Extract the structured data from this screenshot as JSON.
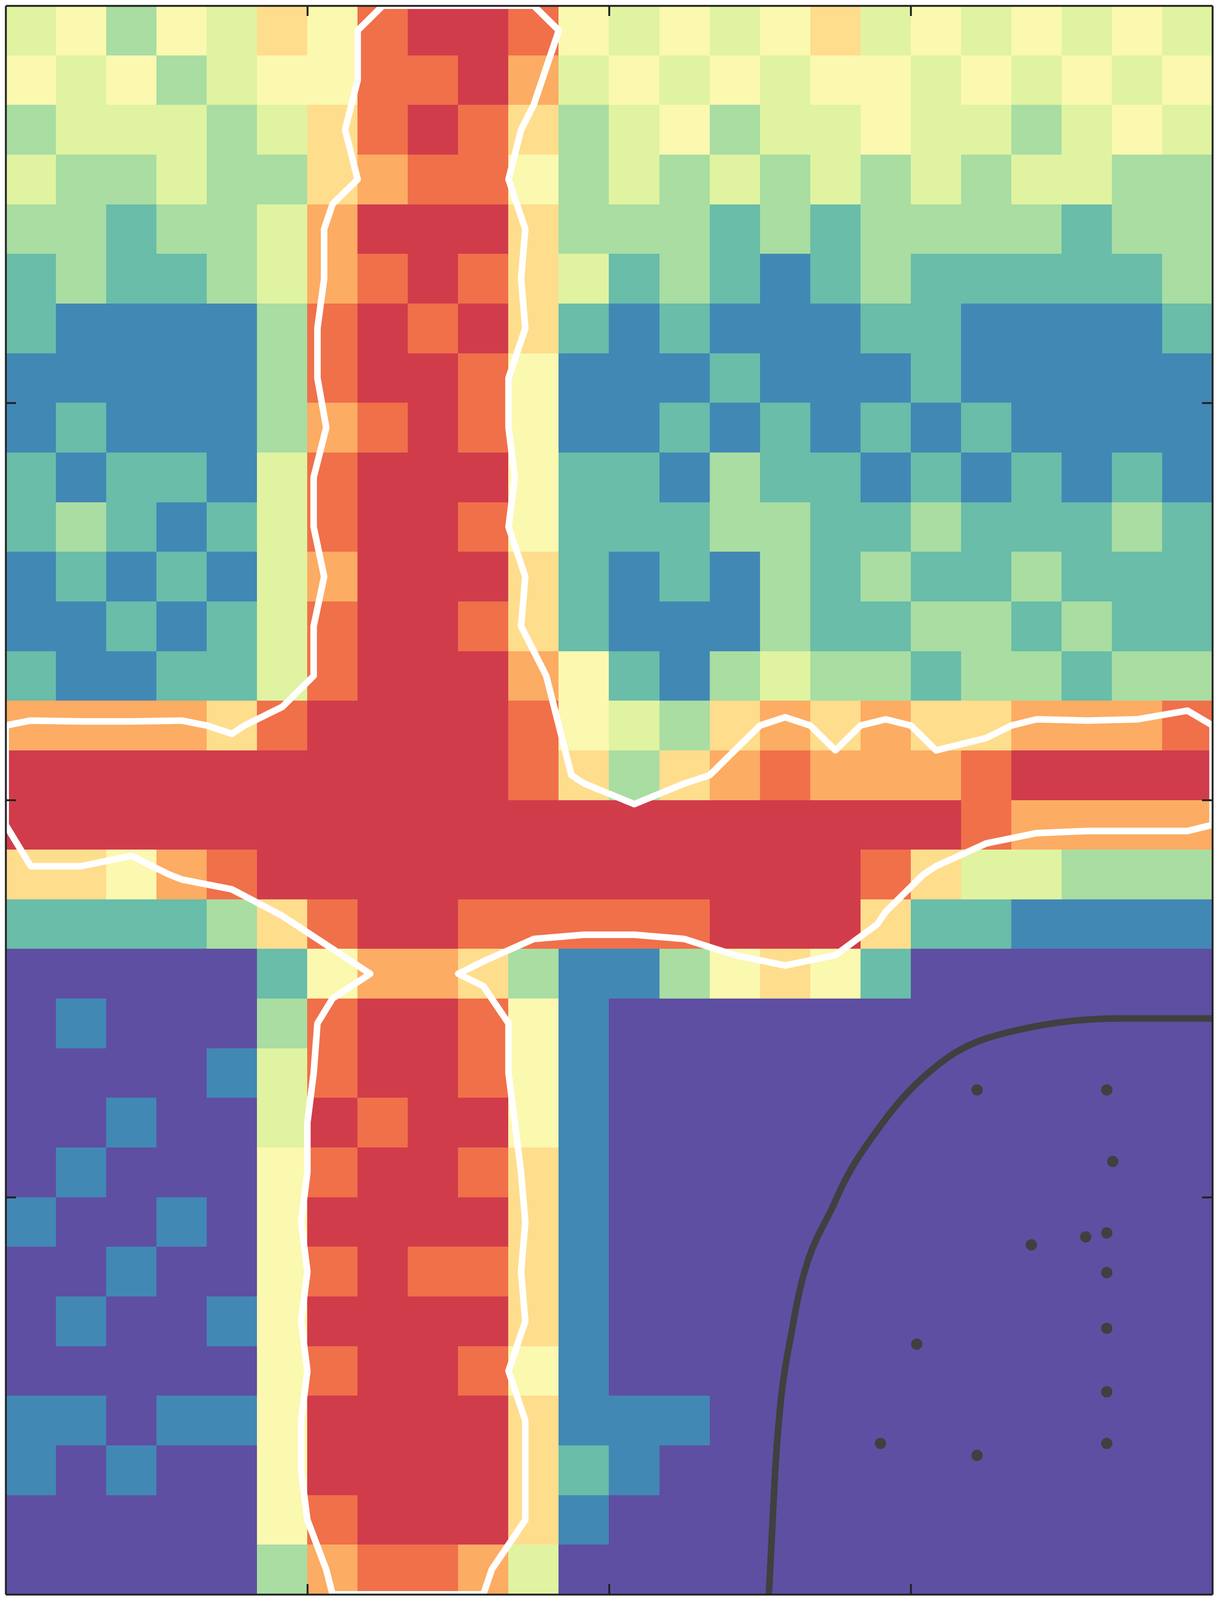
{
  "chart_data": {
    "type": "heatmap",
    "xlim": [
      0,
      4
    ],
    "ylim": [
      0,
      4
    ],
    "xticks": [
      1,
      2,
      3
    ],
    "yticks": [
      1,
      2,
      3
    ],
    "tick_labels": false,
    "zlim": [
      0,
      10
    ],
    "contour_levels": [
      6.5
    ],
    "x": [
      0.0833,
      0.25,
      0.4167,
      0.5833,
      0.75,
      0.9167,
      1.0833,
      1.25,
      1.4167,
      1.5833,
      1.75,
      1.9167,
      2.0833,
      2.25,
      2.4167,
      2.5833,
      2.75,
      2.9167,
      3.0833,
      3.25,
      3.4167,
      3.5833,
      3.75,
      3.9167
    ],
    "y": [
      3.9375,
      3.8125,
      3.6875,
      3.5625,
      3.4375,
      3.3125,
      3.1875,
      3.0625,
      2.9375,
      2.8125,
      2.6875,
      2.5625,
      2.4375,
      2.3125,
      2.1875,
      2.0625,
      1.9375,
      1.8125,
      1.6875,
      1.5625,
      1.4375,
      1.3125,
      1.1875,
      1.0625,
      0.9375,
      0.8125,
      0.6875,
      0.5625,
      0.4375,
      0.3125,
      0.1875,
      0.0625
    ],
    "z": [
      [
        4,
        5,
        3,
        5,
        4,
        6,
        5,
        8,
        9,
        9,
        8,
        5,
        4,
        5,
        4,
        5,
        6,
        4,
        5,
        4,
        5,
        4,
        5,
        4
      ],
      [
        5,
        4,
        5,
        3,
        4,
        5,
        5,
        8,
        8,
        9,
        7,
        4,
        5,
        4,
        5,
        4,
        5,
        5,
        4,
        5,
        4,
        5,
        4,
        5
      ],
      [
        3,
        4,
        4,
        4,
        3,
        4,
        6,
        8,
        9,
        8,
        6,
        3,
        4,
        5,
        3,
        4,
        4,
        5,
        4,
        4,
        3,
        4,
        5,
        4
      ],
      [
        4,
        3,
        3,
        4,
        3,
        3,
        6,
        7,
        8,
        8,
        5,
        3,
        4,
        3,
        4,
        3,
        4,
        3,
        4,
        3,
        4,
        4,
        3,
        3
      ],
      [
        3,
        3,
        2,
        3,
        3,
        4,
        7,
        9,
        9,
        9,
        6,
        3,
        3,
        3,
        2,
        3,
        2,
        3,
        3,
        3,
        3,
        2,
        3,
        3
      ],
      [
        2,
        3,
        2,
        2,
        3,
        4,
        7,
        8,
        9,
        8,
        6,
        4,
        2,
        3,
        2,
        1,
        2,
        3,
        2,
        2,
        2,
        2,
        2,
        3
      ],
      [
        2,
        1,
        1,
        1,
        1,
        3,
        8,
        9,
        8,
        9,
        6,
        2,
        1,
        2,
        1,
        1,
        1,
        2,
        2,
        1,
        1,
        1,
        1,
        2
      ],
      [
        1,
        1,
        1,
        1,
        1,
        3,
        8,
        9,
        9,
        8,
        5,
        1,
        1,
        1,
        2,
        1,
        1,
        1,
        2,
        1,
        1,
        1,
        1,
        1
      ],
      [
        1,
        2,
        1,
        1,
        1,
        3,
        7,
        8,
        9,
        8,
        5,
        1,
        1,
        2,
        1,
        2,
        1,
        2,
        1,
        2,
        1,
        1,
        1,
        1
      ],
      [
        2,
        1,
        2,
        2,
        1,
        4,
        8,
        9,
        9,
        9,
        5,
        2,
        2,
        1,
        3,
        2,
        2,
        1,
        2,
        1,
        2,
        1,
        2,
        1
      ],
      [
        2,
        3,
        2,
        1,
        2,
        4,
        8,
        9,
        9,
        8,
        5,
        2,
        2,
        2,
        3,
        3,
        2,
        2,
        3,
        2,
        2,
        2,
        3,
        2
      ],
      [
        1,
        2,
        1,
        2,
        1,
        4,
        7,
        9,
        9,
        9,
        6,
        2,
        1,
        2,
        1,
        3,
        2,
        3,
        2,
        2,
        3,
        2,
        2,
        2
      ],
      [
        1,
        1,
        2,
        1,
        2,
        4,
        8,
        9,
        9,
        8,
        6,
        2,
        1,
        1,
        1,
        3,
        2,
        2,
        3,
        3,
        2,
        3,
        2,
        2
      ],
      [
        2,
        1,
        1,
        2,
        2,
        4,
        8,
        9,
        9,
        9,
        7,
        5,
        2,
        1,
        3,
        4,
        3,
        3,
        2,
        3,
        3,
        2,
        3,
        3
      ],
      [
        7,
        7,
        7,
        7,
        6,
        8,
        9,
        9,
        9,
        9,
        8,
        5,
        4,
        3,
        6,
        7,
        6,
        7,
        6,
        6,
        7,
        7,
        7,
        8
      ],
      [
        9,
        9,
        9,
        9,
        9,
        9,
        9,
        9,
        9,
        9,
        8,
        6,
        3,
        6,
        7,
        8,
        7,
        7,
        7,
        8,
        9,
        9,
        9,
        9
      ],
      [
        9,
        9,
        9,
        9,
        9,
        9,
        9,
        9,
        9,
        9,
        9,
        9,
        9,
        9,
        9,
        9,
        9,
        9,
        9,
        8,
        7,
        7,
        7,
        7
      ],
      [
        6,
        6,
        5,
        7,
        8,
        9,
        9,
        9,
        9,
        9,
        9,
        9,
        9,
        9,
        9,
        9,
        9,
        8,
        6,
        4,
        4,
        3,
        3,
        3
      ],
      [
        2,
        2,
        2,
        2,
        3,
        6,
        8,
        9,
        9,
        8,
        8,
        8,
        8,
        8,
        9,
        9,
        9,
        6,
        2,
        2,
        1,
        1,
        1,
        1
      ],
      [
        0,
        0,
        0,
        0,
        0,
        2,
        5,
        7,
        7,
        6,
        3,
        1,
        1,
        3,
        5,
        6,
        5,
        2,
        0,
        0,
        0,
        0,
        0,
        0
      ],
      [
        0,
        1,
        0,
        0,
        0,
        3,
        8,
        9,
        9,
        8,
        5,
        1,
        0,
        0,
        0,
        0,
        0,
        0,
        0,
        0,
        0,
        0,
        0,
        0
      ],
      [
        0,
        0,
        0,
        0,
        1,
        4,
        8,
        9,
        9,
        8,
        5,
        1,
        0,
        0,
        0,
        0,
        0,
        0,
        0,
        0,
        0,
        0,
        0,
        0
      ],
      [
        0,
        0,
        1,
        0,
        0,
        4,
        9,
        8,
        9,
        9,
        5,
        1,
        0,
        0,
        0,
        0,
        0,
        0,
        0,
        0,
        0,
        0,
        0,
        0
      ],
      [
        0,
        1,
        0,
        0,
        0,
        5,
        8,
        9,
        9,
        8,
        6,
        1,
        0,
        0,
        0,
        0,
        0,
        0,
        0,
        0,
        0,
        0,
        0,
        0
      ],
      [
        1,
        0,
        0,
        1,
        0,
        5,
        9,
        9,
        9,
        9,
        6,
        1,
        0,
        0,
        0,
        0,
        0,
        0,
        0,
        0,
        0,
        0,
        0,
        0
      ],
      [
        0,
        0,
        1,
        0,
        0,
        5,
        8,
        9,
        8,
        8,
        6,
        1,
        0,
        0,
        0,
        0,
        0,
        0,
        0,
        0,
        0,
        0,
        0,
        0
      ],
      [
        0,
        1,
        0,
        0,
        1,
        5,
        9,
        9,
        9,
        9,
        6,
        1,
        0,
        0,
        0,
        0,
        0,
        0,
        0,
        0,
        0,
        0,
        0,
        0
      ],
      [
        0,
        0,
        0,
        0,
        0,
        5,
        8,
        9,
        9,
        8,
        5,
        1,
        0,
        0,
        0,
        0,
        0,
        0,
        0,
        0,
        0,
        0,
        0,
        0
      ],
      [
        1,
        1,
        0,
        1,
        1,
        5,
        9,
        9,
        9,
        9,
        6,
        1,
        1,
        1,
        0,
        0,
        0,
        0,
        0,
        0,
        0,
        0,
        0,
        0
      ],
      [
        1,
        0,
        1,
        0,
        0,
        5,
        9,
        9,
        9,
        9,
        6,
        2,
        1,
        0,
        0,
        0,
        0,
        0,
        0,
        0,
        0,
        0,
        0,
        0
      ],
      [
        0,
        0,
        0,
        0,
        0,
        5,
        8,
        9,
        9,
        9,
        6,
        1,
        0,
        0,
        0,
        0,
        0,
        0,
        0,
        0,
        0,
        0,
        0,
        0
      ],
      [
        0,
        0,
        0,
        0,
        0,
        3,
        7,
        8,
        8,
        7,
        4,
        0,
        0,
        0,
        0,
        0,
        0,
        0,
        0,
        0,
        0,
        0,
        0,
        0
      ]
    ],
    "series": [
      {
        "type": "line",
        "color": "#404040",
        "line_style": "solid",
        "x": [
          2.53,
          2.55,
          2.61,
          2.75,
          2.91,
          3.12,
          3.35,
          3.69,
          4.0
        ],
        "values": [
          0,
          0.3,
          0.68,
          0.99,
          1.19,
          1.35,
          1.42,
          1.45,
          1.45
        ]
      },
      {
        "type": "scatter",
        "color": "#404040",
        "marker": "circle",
        "x": [
          3.65,
          3.67,
          3.65,
          3.65,
          3.65,
          3.65,
          3.65,
          3.22,
          3.58,
          3.4,
          3.02,
          2.9,
          3.22
        ],
        "values": [
          1.27,
          1.09,
          0.91,
          0.81,
          0.67,
          0.51,
          0.38,
          1.27,
          0.9,
          0.88,
          0.63,
          0.38,
          0.35
        ]
      }
    ]
  }
}
